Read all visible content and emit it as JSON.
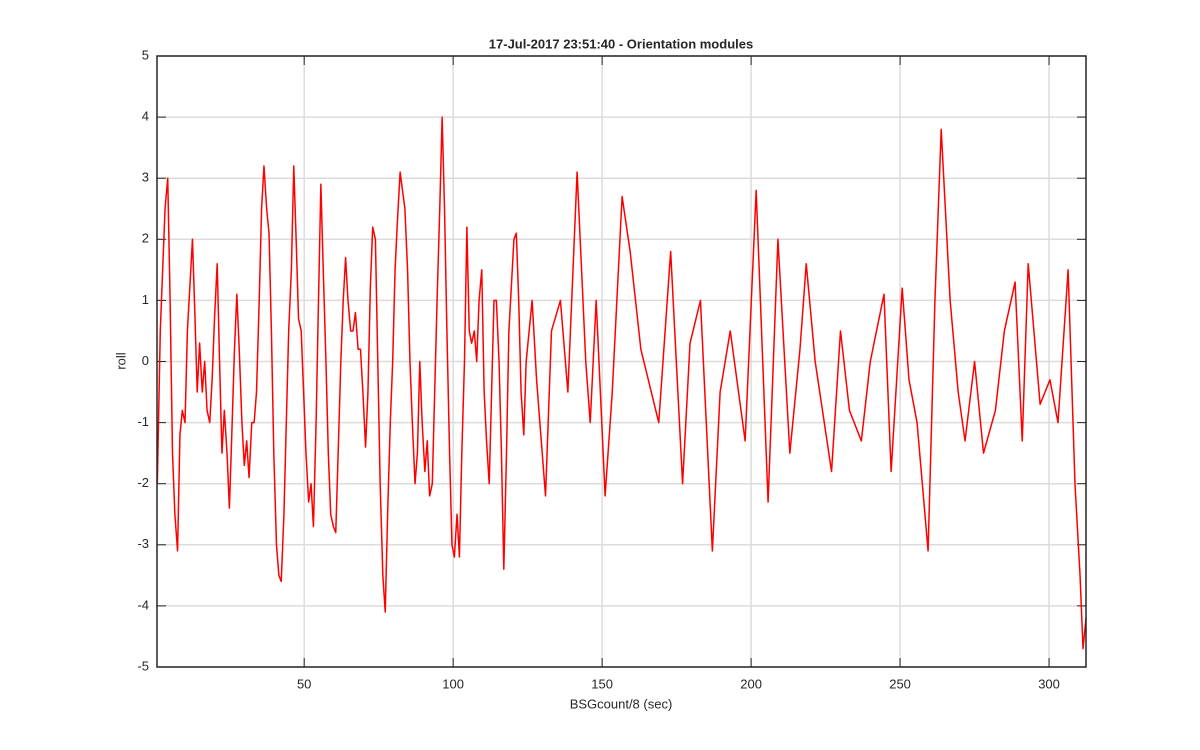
{
  "chart_data": {
    "type": "line",
    "title": "17-Jul-2017 23:51:40 - Orientation modules",
    "x_label": "BSGcount/8 (sec)",
    "y_label": "roll",
    "xlim": [
      0.6,
      312.4
    ],
    "ylim": [
      -5,
      5
    ],
    "xticks": [
      50,
      100,
      150,
      200,
      250,
      300
    ],
    "yticks": [
      -5,
      -4,
      -3,
      -2,
      -1,
      0,
      1,
      2,
      3,
      4,
      5
    ],
    "grid": true,
    "x": [
      0.7,
      1.7,
      2.5,
      3.3,
      4.2,
      5.0,
      5.8,
      6.6,
      7.5,
      8.3,
      9.1,
      10.0,
      10.8,
      11.6,
      12.5,
      13.3,
      14.1,
      14.9,
      15.8,
      16.6,
      17.4,
      18.3,
      19.1,
      19.9,
      20.8,
      21.6,
      22.4,
      23.2,
      24.1,
      24.9,
      25.7,
      26.6,
      27.4,
      28.2,
      29.1,
      29.9,
      30.7,
      31.5,
      32.4,
      33.2,
      34.0,
      34.9,
      35.7,
      36.5,
      37.4,
      38.2,
      39.0,
      39.8,
      40.7,
      41.5,
      42.3,
      43.2,
      44.0,
      44.8,
      45.7,
      46.5,
      47.3,
      48.1,
      49.0,
      49.8,
      50.6,
      51.5,
      52.3,
      53.1,
      54.0,
      54.8,
      55.6,
      56.4,
      57.3,
      58.1,
      58.9,
      59.8,
      60.6,
      61.4,
      62.3,
      63.1,
      63.9,
      64.7,
      65.6,
      66.4,
      67.2,
      68.1,
      68.9,
      69.7,
      70.6,
      71.4,
      72.2,
      73.0,
      73.9,
      74.7,
      75.5,
      76.4,
      77.2,
      78.0,
      78.9,
      79.7,
      80.5,
      81.3,
      82.2,
      83.0,
      83.8,
      84.7,
      85.5,
      86.3,
      87.2,
      88.0,
      88.8,
      89.6,
      90.5,
      91.3,
      92.1,
      93.0,
      93.8,
      94.6,
      95.5,
      96.3,
      97.1,
      97.9,
      98.8,
      99.6,
      100.4,
      101.3,
      102.1,
      102.9,
      103.8,
      104.6,
      105.4,
      106.2,
      107.1,
      107.9,
      108.7,
      109.6,
      110.4,
      111.2,
      112.1,
      112.9,
      113.7,
      114.5,
      115.4,
      116.2,
      117.0,
      117.9,
      118.7,
      119.5,
      120.4,
      121.2,
      122.0,
      122.8,
      123.7,
      124.5,
      126.5,
      128,
      131,
      133,
      136,
      138.5,
      141.6,
      144.5,
      146,
      148,
      151,
      153.4,
      156.7,
      159.4,
      163,
      169,
      173,
      177,
      179.5,
      183,
      187,
      189.6,
      193,
      198,
      201.7,
      205.7,
      209,
      213,
      216.4,
      218.5,
      221.5,
      227,
      230,
      233,
      237,
      240,
      244.6,
      247,
      250.7,
      253,
      255.7,
      259.4,
      261.7,
      263.8,
      266.8,
      269.5,
      271.8,
      275,
      278,
      282,
      285,
      288.6,
      291,
      293,
      297,
      300.3,
      303,
      306.4,
      308.7,
      310.4,
      311.4,
      312.4
    ],
    "series": [
      {
        "name": "roll",
        "color": "#ff0000",
        "values": [
          -2.0,
          0.5,
          1.5,
          2.5,
          3.0,
          1.0,
          -1.5,
          -2.5,
          -3.1,
          -1.2,
          -0.8,
          -1.0,
          0.5,
          1.2,
          2.0,
          0.8,
          -0.5,
          0.3,
          -0.5,
          0.0,
          -0.8,
          -1.0,
          -0.3,
          0.7,
          1.6,
          0.0,
          -1.5,
          -0.8,
          -1.5,
          -2.4,
          -1.2,
          0.2,
          1.1,
          0.2,
          -1.0,
          -1.7,
          -1.3,
          -1.9,
          -1.0,
          -1.0,
          -0.5,
          1.0,
          2.5,
          3.2,
          2.5,
          2.1,
          0.5,
          -1.5,
          -3.0,
          -3.5,
          -3.6,
          -2.5,
          -1.0,
          0.5,
          1.5,
          3.2,
          2.0,
          0.7,
          0.5,
          -0.5,
          -1.5,
          -2.3,
          -2.0,
          -2.7,
          -1.0,
          1.0,
          2.9,
          1.5,
          0.0,
          -1.5,
          -2.5,
          -2.7,
          -2.8,
          -1.5,
          0.0,
          1.0,
          1.7,
          1.0,
          0.5,
          0.5,
          0.8,
          0.2,
          0.2,
          -0.5,
          -1.4,
          -0.5,
          1.2,
          2.2,
          2.0,
          0.0,
          -2.0,
          -3.5,
          -4.1,
          -2.5,
          -1.0,
          0.0,
          1.5,
          2.3,
          3.1,
          2.8,
          2.5,
          1.5,
          0.0,
          -1.0,
          -2.0,
          -1.5,
          0.0,
          -1.0,
          -1.8,
          -1.3,
          -2.2,
          -2.0,
          -0.5,
          1.0,
          2.5,
          4.0,
          2.5,
          0.5,
          -1.5,
          -3.0,
          -3.2,
          -2.5,
          -3.2,
          -1.5,
          0.0,
          2.2,
          0.5,
          0.3,
          0.5,
          0.0,
          1.0,
          1.5,
          -0.5,
          -1.3,
          -2.0,
          -0.5,
          1.0,
          1.0,
          0.0,
          -1.5,
          -3.4,
          -1.5,
          0.5,
          1.2,
          2.0,
          2.1,
          1.0,
          -0.5,
          -1.2,
          0.0,
          1.0,
          -0.3,
          -2.2,
          0.5,
          1.0,
          -0.5,
          3.1,
          0.0,
          -1.0,
          1.0,
          -2.2,
          -0.5,
          2.7,
          1.8,
          0.2,
          -1.0,
          1.8,
          -2.0,
          0.3,
          1.0,
          -3.1,
          -0.5,
          0.5,
          -1.3,
          2.8,
          -2.3,
          2.0,
          -1.5,
          0.2,
          1.6,
          0.0,
          -1.8,
          0.5,
          -0.8,
          -1.3,
          0.0,
          1.1,
          -1.8,
          1.2,
          -0.3,
          -1.0,
          -3.1,
          1.0,
          3.8,
          1.0,
          -0.5,
          -1.3,
          0.0,
          -1.5,
          -0.8,
          0.5,
          1.3,
          -1.3,
          1.6,
          -0.7,
          -0.3,
          -1.0,
          1.5,
          -2.0,
          -3.5,
          -4.7,
          -4.2
        ]
      }
    ]
  }
}
